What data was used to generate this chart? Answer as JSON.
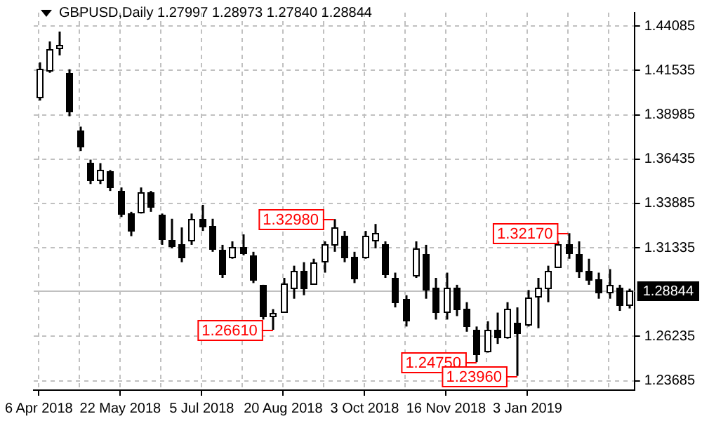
{
  "chart_data": {
    "type": "candlestick",
    "title": "GBPUSD,Daily 1.27997 1.28973 1.27840 1.28844",
    "categories": [
      "6 Apr 2018",
      null,
      null,
      null,
      null,
      null,
      null,
      null,
      "22 May 2018",
      null,
      null,
      null,
      null,
      null,
      null,
      null,
      "5 Jul 2018",
      null,
      null,
      null,
      null,
      null,
      null,
      null,
      "20 Aug 2018",
      null,
      null,
      null,
      null,
      null,
      null,
      null,
      "3 Oct 2018",
      null,
      null,
      null,
      null,
      null,
      null,
      null,
      "16 Nov 2018",
      null,
      null,
      null,
      null,
      null,
      null,
      null,
      "3 Jan 2019",
      null,
      null,
      null,
      null,
      null,
      null,
      null,
      null,
      null,
      null
    ],
    "ohlc": [
      [
        1.4,
        1.42,
        1.398,
        1.416
      ],
      [
        1.416,
        1.432,
        1.414,
        1.428
      ],
      [
        1.428,
        1.4377,
        1.424,
        1.43
      ],
      [
        1.414,
        1.416,
        1.389,
        1.392
      ],
      [
        1.381,
        1.383,
        1.369,
        1.372
      ],
      [
        1.362,
        1.364,
        1.35,
        1.352
      ],
      [
        1.352,
        1.362,
        1.35,
        1.358
      ],
      [
        1.357,
        1.358,
        1.346,
        1.348
      ],
      [
        1.346,
        1.348,
        1.331,
        1.333
      ],
      [
        1.333,
        1.334,
        1.32,
        1.323
      ],
      [
        1.334,
        1.348,
        1.333,
        1.345
      ],
      [
        1.345,
        1.346,
        1.334,
        1.337
      ],
      [
        1.332,
        1.333,
        1.315,
        1.318
      ],
      [
        1.318,
        1.33,
        1.313,
        1.315
      ],
      [
        1.315,
        1.325,
        1.305,
        1.308
      ],
      [
        1.318,
        1.333,
        1.315,
        1.33
      ],
      [
        1.33,
        1.338,
        1.323,
        1.326
      ],
      [
        1.326,
        1.33,
        1.311,
        1.313
      ],
      [
        1.312,
        1.315,
        1.296,
        1.298
      ],
      [
        1.308,
        1.317,
        1.307,
        1.314
      ],
      [
        1.314,
        1.321,
        1.309,
        1.311
      ],
      [
        1.309,
        1.311,
        1.293,
        1.295
      ],
      [
        1.292,
        1.292,
        1.272,
        1.274
      ],
      [
        1.274,
        1.278,
        1.2661,
        1.276
      ],
      [
        1.277,
        1.296,
        1.276,
        1.293
      ],
      [
        1.29,
        1.303,
        1.284,
        1.3
      ],
      [
        1.3,
        1.305,
        1.286,
        1.29
      ],
      [
        1.293,
        1.307,
        1.292,
        1.305
      ],
      [
        1.305,
        1.317,
        1.299,
        1.315
      ],
      [
        1.315,
        1.3298,
        1.311,
        1.325
      ],
      [
        1.32,
        1.323,
        1.305,
        1.308
      ],
      [
        1.308,
        1.311,
        1.293,
        1.296
      ],
      [
        1.308,
        1.323,
        1.307,
        1.32
      ],
      [
        1.318,
        1.327,
        1.313,
        1.322
      ],
      [
        1.315,
        1.317,
        1.296,
        1.298
      ],
      [
        1.296,
        1.299,
        1.279,
        1.282
      ],
      [
        1.284,
        1.286,
        1.268,
        1.272
      ],
      [
        1.298,
        1.317,
        1.296,
        1.313
      ],
      [
        1.31,
        1.315,
        1.284,
        1.29
      ],
      [
        1.29,
        1.296,
        1.272,
        1.276
      ],
      [
        1.276,
        1.299,
        1.272,
        1.29
      ],
      [
        1.29,
        1.292,
        1.274,
        1.278
      ],
      [
        1.278,
        1.282,
        1.265,
        1.268
      ],
      [
        1.266,
        1.268,
        1.2475,
        1.252
      ],
      [
        1.254,
        1.271,
        1.253,
        1.266
      ],
      [
        1.266,
        1.276,
        1.258,
        1.262
      ],
      [
        1.262,
        1.282,
        1.261,
        1.278
      ],
      [
        1.27,
        1.279,
        1.2396,
        1.264
      ],
      [
        1.27,
        1.289,
        1.268,
        1.285
      ],
      [
        1.285,
        1.296,
        1.267,
        1.29
      ],
      [
        1.29,
        1.303,
        1.282,
        1.3
      ],
      [
        1.302,
        1.317,
        1.302,
        1.315
      ],
      [
        1.315,
        1.3217,
        1.307,
        1.31
      ],
      [
        1.31,
        1.317,
        1.296,
        1.3
      ],
      [
        1.3,
        1.307,
        1.292,
        1.295
      ],
      [
        1.295,
        1.299,
        1.284,
        1.288
      ],
      [
        1.288,
        1.301,
        1.284,
        1.292
      ],
      [
        1.29,
        1.292,
        1.277,
        1.28
      ],
      [
        1.27997,
        1.28973,
        1.2784,
        1.28844
      ]
    ],
    "ylim": [
      1.2314,
      1.4486
    ],
    "yticks": [
      1.44085,
      1.41535,
      1.38985,
      1.36435,
      1.33885,
      1.31335,
      1.26235,
      1.23685
    ],
    "grid": true,
    "legend": false,
    "ref_lines": [
      {
        "axis": "y",
        "value": 1.28844,
        "label": "1.28844",
        "color": "#c0c0c0"
      }
    ],
    "annotations": [
      "1.32980",
      "1.26610",
      "1.24750",
      "1.23960",
      "1.32170"
    ]
  }
}
